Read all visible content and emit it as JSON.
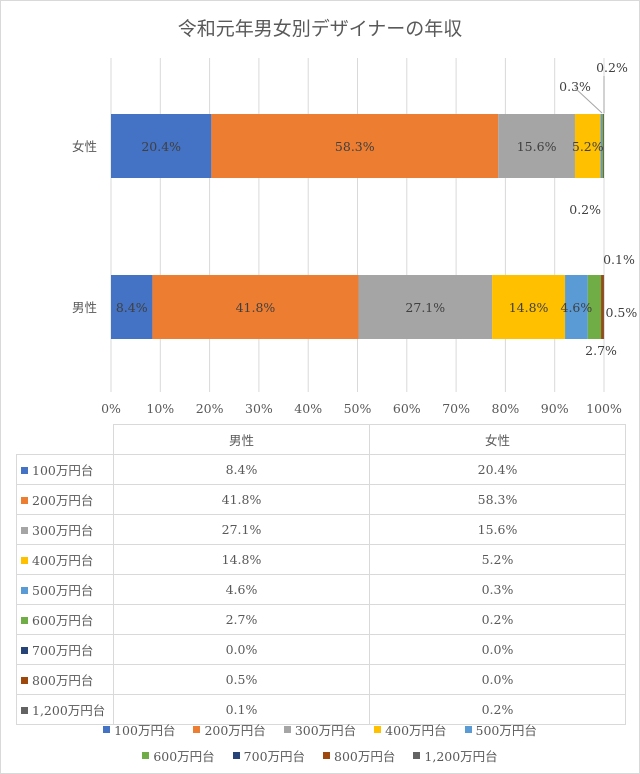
{
  "chart_data": {
    "type": "bar",
    "orientation": "horizontal",
    "stacked": "percent",
    "title": "令和元年男女別デザイナーの年収",
    "categories": [
      "女性",
      "男性"
    ],
    "column_headers": [
      "男性",
      "女性"
    ],
    "xlim": [
      0,
      100
    ],
    "x_ticks": [
      "0%",
      "10%",
      "20%",
      "30%",
      "40%",
      "50%",
      "60%",
      "70%",
      "80%",
      "90%",
      "100%"
    ],
    "grid": true,
    "legend_position": "bottom",
    "series": [
      {
        "name": "100万円台",
        "color": "#4472c4",
        "values": [
          20.4,
          8.4
        ],
        "labels": [
          "20.4%",
          "8.4%"
        ]
      },
      {
        "name": "200万円台",
        "color": "#ed7d31",
        "values": [
          58.3,
          41.8
        ],
        "labels": [
          "58.3%",
          "41.8%"
        ]
      },
      {
        "name": "300万円台",
        "color": "#a5a5a5",
        "values": [
          15.6,
          27.1
        ],
        "labels": [
          "15.6%",
          "27.1%"
        ]
      },
      {
        "name": "400万円台",
        "color": "#ffc000",
        "values": [
          5.2,
          14.8
        ],
        "labels": [
          "5.2%",
          "14.8%"
        ]
      },
      {
        "name": "500万円台",
        "color": "#5b9bd5",
        "values": [
          0.3,
          4.6
        ],
        "labels": [
          "0.3%",
          "4.6%"
        ]
      },
      {
        "name": "600万円台",
        "color": "#70ad47",
        "values": [
          0.2,
          2.7
        ],
        "labels": [
          "0.2%",
          "2.7%"
        ]
      },
      {
        "name": "700万円台",
        "color": "#264478",
        "values": [
          0.0,
          0.0
        ],
        "labels": [
          "0.0%",
          "0.0%"
        ]
      },
      {
        "name": "800万円台",
        "color": "#9e480e",
        "values": [
          0.0,
          0.5
        ],
        "labels": [
          "0.0%",
          "0.5%"
        ]
      },
      {
        "name": "1,200万円台",
        "color": "#636363",
        "values": [
          0.2,
          0.1
        ],
        "labels": [
          "0.2%",
          "0.1%"
        ]
      }
    ]
  }
}
